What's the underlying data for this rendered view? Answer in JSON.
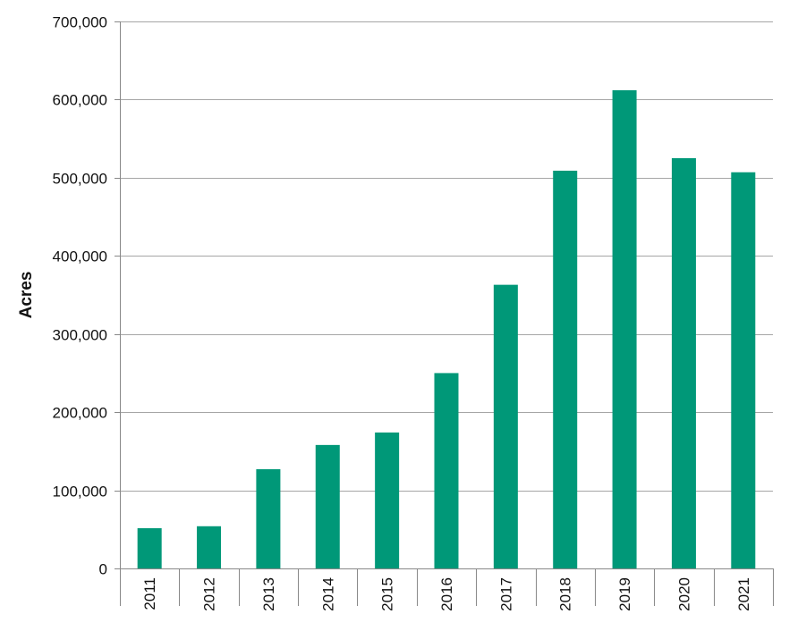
{
  "chart_data": {
    "type": "bar",
    "title": "",
    "xlabel": "",
    "ylabel": "Acres",
    "ylim": [
      0,
      700000
    ],
    "yticks": [
      0,
      100000,
      200000,
      300000,
      400000,
      500000,
      600000,
      700000
    ],
    "ytick_labels": [
      "0",
      "100,000",
      "200,000",
      "300,000",
      "400,000",
      "500,000",
      "600,000",
      "700,000"
    ],
    "grid": true,
    "categories": [
      "2011",
      "2012",
      "2013",
      "2014",
      "2015",
      "2016",
      "2017",
      "2018",
      "2019",
      "2020",
      "2021"
    ],
    "values": [
      51500,
      54000,
      127000,
      158000,
      174000,
      250000,
      363000,
      509000,
      612000,
      525000,
      507000
    ],
    "bar_color": "#009878"
  }
}
